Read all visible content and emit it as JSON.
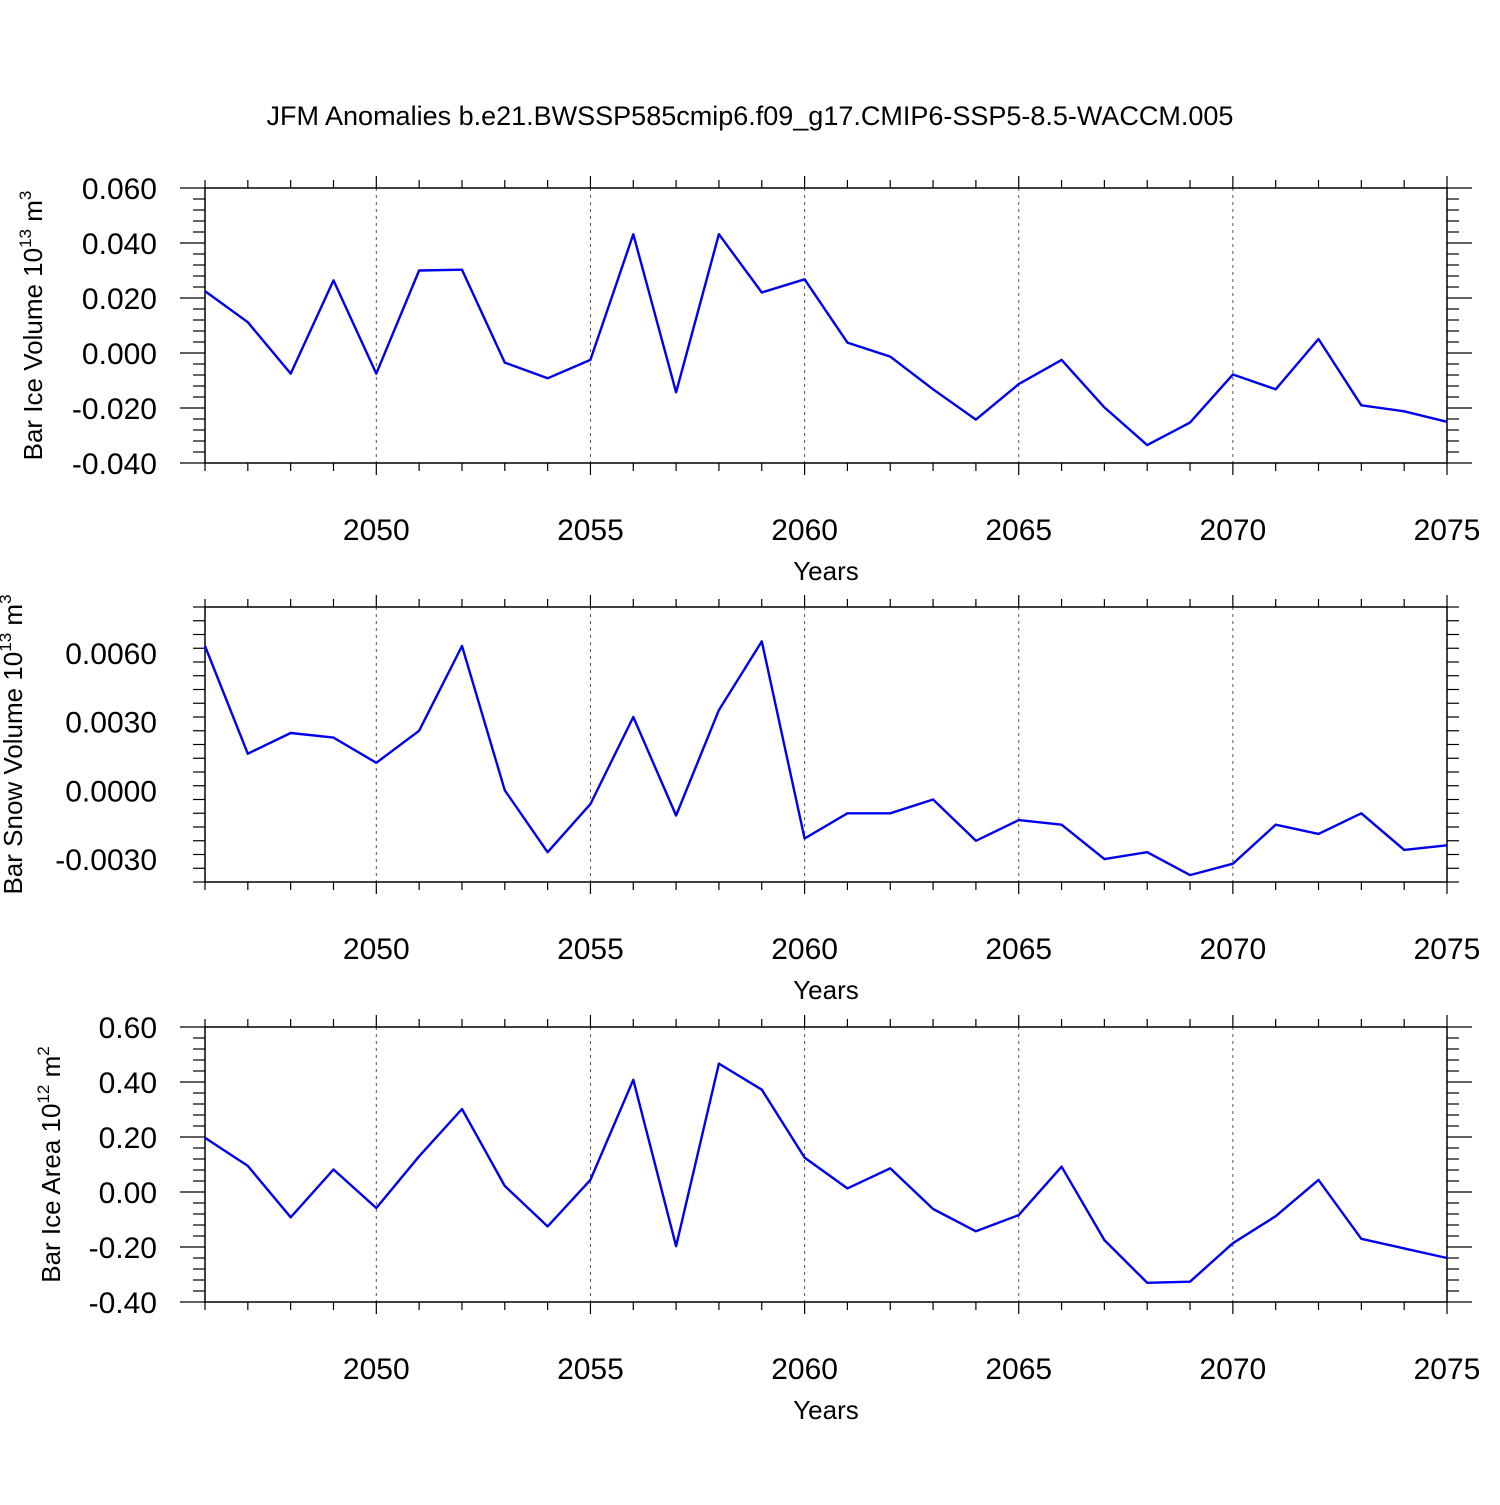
{
  "title": "JFM Anomalies b.e21.BWSSP585cmip6.f09_g17.CMIP6-SSP5-8.5-WACCM.005",
  "chart_data": [
    {
      "type": "line",
      "ylabel": "Bar Ice Volume 10",
      "ylabel_exp": "13",
      "ylabel_unit": " m",
      "ylabel_unit_exp": "3",
      "xlabel": "Years",
      "xlim": [
        2046,
        2075
      ],
      "ylim": [
        -0.04,
        0.06
      ],
      "x_ticks": [
        2050,
        2055,
        2060,
        2065,
        2070,
        2075
      ],
      "x_tick_labels": [
        "2050",
        "2055",
        "2060",
        "2065",
        "2070",
        "2075"
      ],
      "y_ticks": [
        -0.04,
        -0.02,
        0.0,
        0.02,
        0.04,
        0.06
      ],
      "y_tick_labels": [
        "-0.040",
        "-0.020",
        "0.000",
        "0.020",
        "0.040",
        "0.060"
      ],
      "grid": "vertical dashed at major x ticks",
      "color": "#0000ee",
      "x": [
        2046,
        2047,
        2048,
        2049,
        2050,
        2051,
        2052,
        2053,
        2054,
        2055,
        2056,
        2057,
        2058,
        2059,
        2060,
        2061,
        2062,
        2063,
        2064,
        2065,
        2066,
        2067,
        2068,
        2069,
        2070,
        2071,
        2072,
        2073,
        2074,
        2075
      ],
      "values": [
        0.0225,
        0.0112,
        -0.0075,
        0.0264,
        -0.0075,
        0.03,
        0.0303,
        -0.0035,
        -0.0092,
        -0.0025,
        0.0432,
        -0.0143,
        0.0432,
        0.022,
        0.0268,
        0.0038,
        -0.0013,
        -0.0132,
        -0.0242,
        -0.0113,
        -0.0025,
        -0.0198,
        -0.0335,
        -0.0253,
        -0.0078,
        -0.0132,
        0.0051,
        -0.019,
        -0.0212,
        -0.025
      ]
    },
    {
      "type": "line",
      "ylabel": "Bar Snow Volume 10",
      "ylabel_exp": "13",
      "ylabel_unit": " m",
      "ylabel_unit_exp": "3",
      "xlabel": "Years",
      "xlim": [
        2046,
        2075
      ],
      "ylim": [
        -0.004,
        0.008
      ],
      "x_ticks": [
        2050,
        2055,
        2060,
        2065,
        2070,
        2075
      ],
      "x_tick_labels": [
        "2050",
        "2055",
        "2060",
        "2065",
        "2070",
        "2075"
      ],
      "y_ticks": [
        -0.003,
        0.0,
        0.003,
        0.006
      ],
      "y_tick_labels": [
        "-0.0030",
        "0.0000",
        "0.0030",
        "0.0060"
      ],
      "grid": "vertical dashed at major x ticks",
      "color": "#0000ee",
      "x": [
        2046,
        2047,
        2048,
        2049,
        2050,
        2051,
        2052,
        2053,
        2054,
        2055,
        2056,
        2057,
        2058,
        2059,
        2060,
        2061,
        2062,
        2063,
        2064,
        2065,
        2066,
        2067,
        2068,
        2069,
        2070,
        2071,
        2072,
        2073,
        2074,
        2075
      ],
      "values": [
        0.0063,
        0.0016,
        0.0025,
        0.0023,
        0.0012,
        0.0026,
        0.0063,
        0.0,
        -0.0027,
        -0.0006,
        0.0032,
        -0.0011,
        0.0035,
        0.0065,
        -0.0021,
        -0.001,
        -0.001,
        -0.0004,
        -0.0022,
        -0.0013,
        -0.0015,
        -0.003,
        -0.0027,
        -0.0037,
        -0.0032,
        -0.0015,
        -0.0019,
        -0.001,
        -0.0026,
        -0.0024
      ]
    },
    {
      "type": "line",
      "ylabel": "Bar Ice Area 10",
      "ylabel_exp": "12",
      "ylabel_unit": " m",
      "ylabel_unit_exp": "2",
      "xlabel": "Years",
      "xlim": [
        2046,
        2075
      ],
      "ylim": [
        -0.4,
        0.6
      ],
      "x_ticks": [
        2050,
        2055,
        2060,
        2065,
        2070,
        2075
      ],
      "x_tick_labels": [
        "2050",
        "2055",
        "2060",
        "2065",
        "2070",
        "2075"
      ],
      "y_ticks": [
        -0.4,
        -0.2,
        0.0,
        0.2,
        0.4,
        0.6
      ],
      "y_tick_labels": [
        "-0.40",
        "-0.20",
        "0.00",
        "0.20",
        "0.40",
        "0.60"
      ],
      "grid": "vertical dashed at major x ticks",
      "color": "#0000ee",
      "x": [
        2046,
        2047,
        2048,
        2049,
        2050,
        2051,
        2052,
        2053,
        2054,
        2055,
        2056,
        2057,
        2058,
        2059,
        2060,
        2061,
        2062,
        2063,
        2064,
        2065,
        2066,
        2067,
        2068,
        2069,
        2070,
        2071,
        2072,
        2073,
        2074,
        2075
      ],
      "values": [
        0.197,
        0.095,
        -0.092,
        0.082,
        -0.058,
        0.13,
        0.302,
        0.022,
        -0.125,
        0.044,
        0.408,
        -0.197,
        0.467,
        0.372,
        0.125,
        0.013,
        0.086,
        -0.062,
        -0.143,
        -0.084,
        0.092,
        -0.175,
        -0.33,
        -0.326,
        -0.186,
        -0.088,
        0.044,
        -0.17,
        -0.205,
        -0.24
      ]
    }
  ]
}
